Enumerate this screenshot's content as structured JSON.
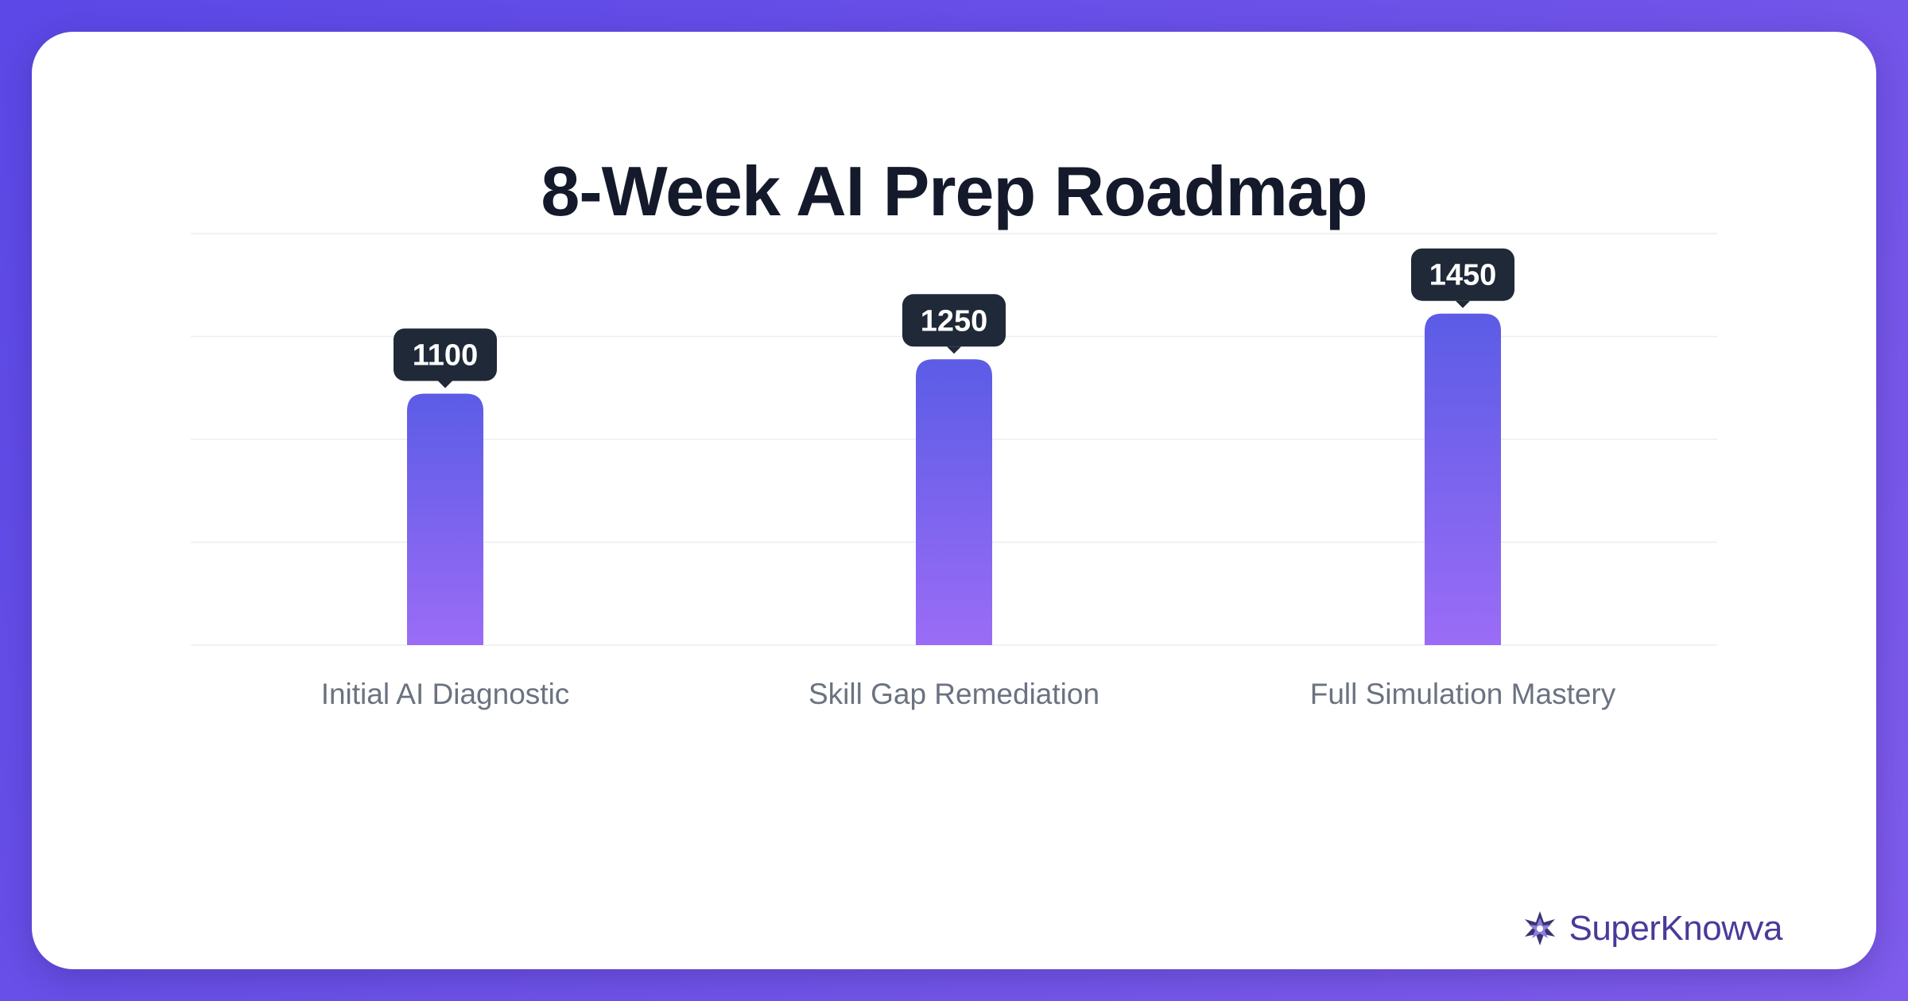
{
  "chart_data": {
    "type": "bar",
    "title": "8-Week AI Prep Roadmap",
    "categories": [
      "Initial AI Diagnostic",
      "Skill Gap Remediation",
      "Full Simulation Mastery"
    ],
    "values": [
      1100,
      1250,
      1450
    ],
    "ylim": [
      0,
      1800
    ],
    "grid": true,
    "colors": {
      "bar_top": "#5b5ce6",
      "bar_bottom": "#9b6cf6",
      "label_bg": "#1f2937"
    }
  },
  "brand": {
    "name": "SuperKnowva",
    "icon": "starburst-logo-icon"
  }
}
